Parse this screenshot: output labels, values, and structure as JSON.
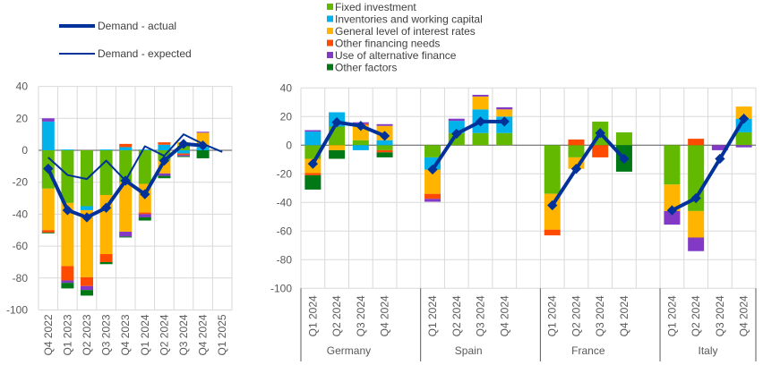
{
  "colors": {
    "Fixed investment": "#63B800",
    "Inventories and working capital": "#00B1EA",
    "General level of interest rates": "#FFB400",
    "Other financing needs": "#FF4B00",
    "Use of alternative finance": "#8139C6",
    "Other factors": "#007816",
    "line": "#003299"
  },
  "legend": {
    "lines": [
      "Demand - actual",
      "Demand - expected"
    ],
    "bars": [
      "Fixed investment",
      "Inventories and working capital",
      "General level of interest rates",
      "Other financing needs",
      "Use of alternative finance",
      "Other factors"
    ]
  },
  "chart_data": [
    {
      "type": "bar",
      "stacked": true,
      "ylim": [
        -100,
        40
      ],
      "yticks": [
        40,
        20,
        0,
        -20,
        -40,
        -60,
        -80,
        -100
      ],
      "grid": true,
      "categories": [
        "Q4 2022",
        "Q1 2023",
        "Q2 2023",
        "Q3 2023",
        "Q4 2023",
        "Q1 2024",
        "Q2 2024",
        "Q3 2024",
        "Q4 2024",
        "Q1 2025"
      ],
      "series": [
        {
          "name": "Fixed investment",
          "values": [
            -24,
            -33,
            -35,
            -28,
            -20,
            -21,
            -6.5,
            3,
            0,
            null
          ]
        },
        {
          "name": "Inventories and working capital",
          "values": [
            18,
            0.5,
            -2.5,
            0.5,
            2,
            0.5,
            3.5,
            -2,
            2,
            null
          ]
        },
        {
          "name": "General level of interest rates",
          "values": [
            -26,
            -39.5,
            -42,
            -37,
            -31,
            -18,
            -8,
            2,
            9,
            null
          ]
        },
        {
          "name": "Other financing needs",
          "values": [
            -1.5,
            -9,
            -5.5,
            -5,
            2,
            -1,
            1.5,
            -1,
            0,
            null
          ]
        },
        {
          "name": "Use of alternative finance",
          "values": [
            2,
            -1.5,
            -2.5,
            0,
            -3,
            -2,
            -1.5,
            -0.7,
            0.6,
            null
          ]
        },
        {
          "name": "Other factors",
          "values": [
            -0.5,
            -3.5,
            -3.5,
            -1.3,
            -0.6,
            -2,
            -1.5,
            -0.5,
            -5,
            null
          ]
        }
      ],
      "lines": [
        {
          "name": "Demand - actual",
          "values": [
            -11.5,
            -37.5,
            -42,
            -36,
            -19,
            -27.5,
            -6.5,
            4,
            3,
            null
          ]
        },
        {
          "name": "Demand - expected",
          "values": [
            -4.5,
            -15.5,
            -18,
            -6.5,
            -19,
            2.5,
            -3.5,
            10,
            4,
            -1
          ]
        }
      ]
    },
    {
      "type": "bar",
      "stacked": true,
      "ylim": [
        -100,
        40
      ],
      "yticks": [
        40,
        20,
        0,
        -20,
        -40,
        -60,
        -80,
        -100
      ],
      "grid": true,
      "groups": [
        {
          "name": "Germany",
          "categories": [
            "Q1 2024",
            "Q2 2024",
            "Q3 2024",
            "Q4 2024"
          ],
          "series": [
            [
              -9.5,
              13,
              3.5,
              -3.5
            ],
            [
              9.5,
              10,
              -3.5,
              3.5
            ],
            [
              -10,
              -3.5,
              10.5,
              10
            ],
            [
              -1.5,
              0,
              1,
              -1.5
            ],
            [
              1,
              0,
              1,
              1.2
            ],
            [
              -10,
              -6,
              0,
              -3.5
            ]
          ],
          "actual": [
            -13,
            16,
            13.5,
            6.5
          ]
        },
        {
          "name": "Spain",
          "categories": [
            "Q1 2024",
            "Q2 2024",
            "Q3 2024",
            "Q4 2024"
          ],
          "series": [
            [
              -8.5,
              8.5,
              8.5,
              8.5
            ],
            [
              -8.5,
              8.5,
              16.5,
              11.5
            ],
            [
              -17,
              0,
              9,
              5
            ],
            [
              -3.5,
              0,
              0,
              0
            ],
            [
              -2,
              1.5,
              1.2,
              1.5
            ],
            [
              0,
              0,
              0,
              0
            ]
          ],
          "actual": [
            -17,
            8,
            16.5,
            16.5
          ]
        },
        {
          "name": "France",
          "categories": [
            "Q1 2024",
            "Q2 2024",
            "Q3 2024",
            "Q4 2024"
          ],
          "series": [
            [
              -34,
              -8.5,
              16.5,
              9
            ],
            [
              0,
              0,
              0,
              0
            ],
            [
              -25,
              -8,
              0,
              0
            ],
            [
              -4,
              4,
              -8.5,
              0
            ],
            [
              0,
              0,
              0,
              0
            ],
            [
              0,
              0,
              0,
              -18.5
            ]
          ],
          "actual": [
            -42,
            -16.5,
            8.5,
            -9.5
          ]
        },
        {
          "name": "Italy",
          "categories": [
            "Q1 2024",
            "Q2 2024",
            "Q3 2024",
            "Q4 2024"
          ],
          "series": [
            [
              -27.5,
              -46,
              0,
              9
            ],
            [
              0,
              0,
              0,
              9.5
            ],
            [
              -18.5,
              -18.5,
              0,
              8.5
            ],
            [
              0,
              4.5,
              0,
              0
            ],
            [
              -9.5,
              -9.5,
              -3.5,
              -1.5
            ],
            [
              0,
              0,
              0,
              0
            ]
          ],
          "actual": [
            -45.5,
            -37,
            -9.5,
            18.5
          ]
        }
      ]
    }
  ]
}
